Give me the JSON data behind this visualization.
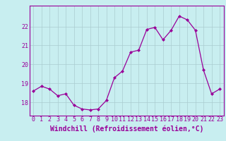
{
  "x": [
    0,
    1,
    2,
    3,
    4,
    5,
    6,
    7,
    8,
    9,
    10,
    11,
    12,
    13,
    14,
    15,
    16,
    17,
    18,
    19,
    20,
    21,
    22,
    23
  ],
  "y": [
    18.6,
    18.85,
    18.7,
    18.35,
    18.45,
    17.85,
    17.65,
    17.6,
    17.65,
    18.1,
    19.3,
    19.65,
    20.65,
    20.75,
    21.85,
    21.95,
    21.3,
    21.8,
    22.55,
    22.35,
    21.8,
    19.7,
    18.45,
    18.7
  ],
  "line_color": "#990099",
  "marker": "D",
  "marker_size": 2,
  "bg_color": "#c8eef0",
  "grid_color": "#aaccd0",
  "xlabel": "Windchill (Refroidissement éolien,°C)",
  "xlabel_fontsize": 7,
  "tick_fontsize": 6,
  "yticks": [
    18,
    19,
    20,
    21,
    22
  ],
  "ylim": [
    17.3,
    23.1
  ],
  "xlim": [
    -0.5,
    23.5
  ],
  "figw": 3.2,
  "figh": 2.0,
  "dpi": 100
}
